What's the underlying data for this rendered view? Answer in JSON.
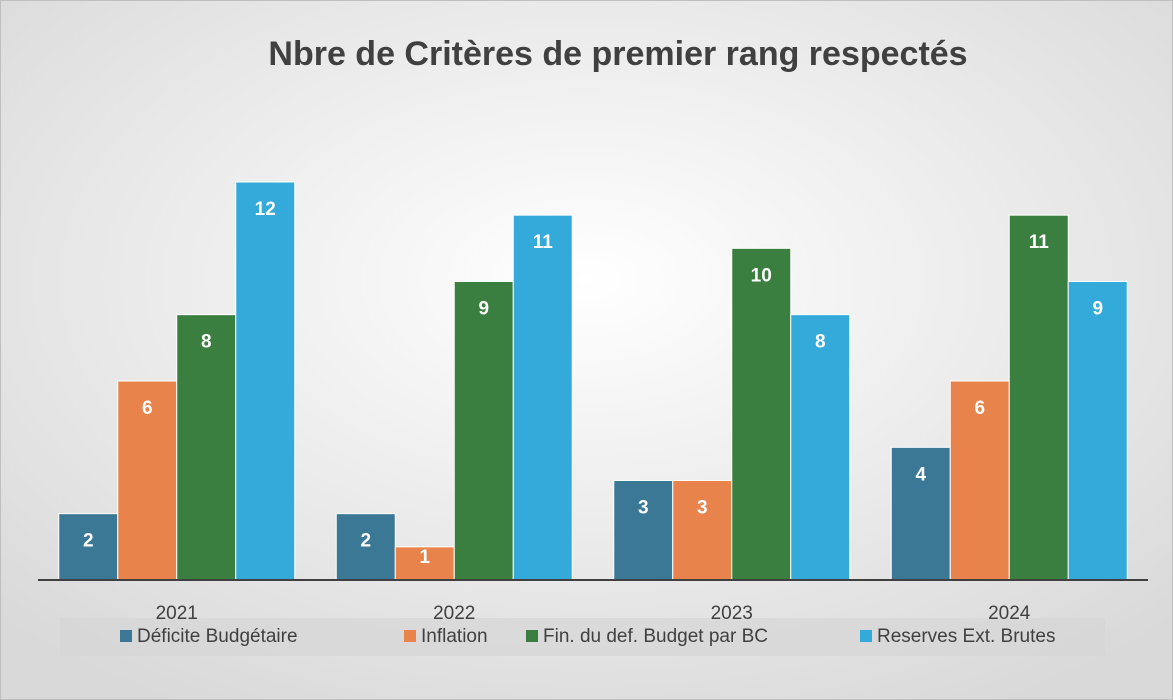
{
  "chart_data": {
    "type": "bar",
    "title": "Nbre de Critères de premier rang respectés",
    "categories": [
      "2021",
      "2022",
      "2023",
      "2024"
    ],
    "series": [
      {
        "name": "Déficite Budgétaire",
        "color": "#3a7896",
        "values": [
          2,
          2,
          3,
          4
        ]
      },
      {
        "name": "Inflation",
        "color": "#e8844b",
        "values": [
          6,
          1,
          3,
          6
        ]
      },
      {
        "name": "Fin. du def. Budget par BC",
        "color": "#3b7f40",
        "values": [
          8,
          9,
          10,
          11
        ]
      },
      {
        "name": "Reserves Ext. Brutes",
        "color": "#34aadb",
        "values": [
          12,
          11,
          8,
          9
        ]
      }
    ],
    "ylim": [
      0,
      12
    ],
    "legend": "bottom"
  }
}
